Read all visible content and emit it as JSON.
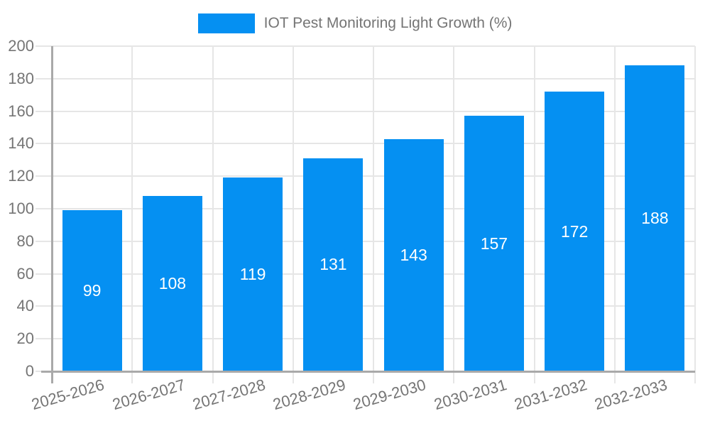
{
  "legend": {
    "label": "IOT Pest Monitoring Light Growth (%)"
  },
  "chart_data": {
    "type": "bar",
    "title": "IOT Pest Monitoring Light Growth (%)",
    "categories": [
      "2025-2026",
      "2026-2027",
      "2027-2028",
      "2028-2029",
      "2029-2030",
      "2030-2031",
      "2031-2032",
      "2032-2033"
    ],
    "values": [
      99,
      108,
      119,
      131,
      143,
      157,
      172,
      188
    ],
    "ylim": [
      0,
      200
    ],
    "yticks": [
      0,
      20,
      40,
      60,
      80,
      100,
      120,
      140,
      160,
      180,
      200
    ],
    "xlabel": "",
    "ylabel": "",
    "grid": true,
    "legend_position": "top-center",
    "value_labels": "inside-middle",
    "x_label_rotation_deg": -16,
    "colors": {
      "bar": "#0590F2",
      "grid": "#e6e6e6",
      "axis": "#a9a9a9",
      "tick_text": "#757575",
      "value_text": "#ffffff",
      "background": "#ffffff"
    }
  }
}
